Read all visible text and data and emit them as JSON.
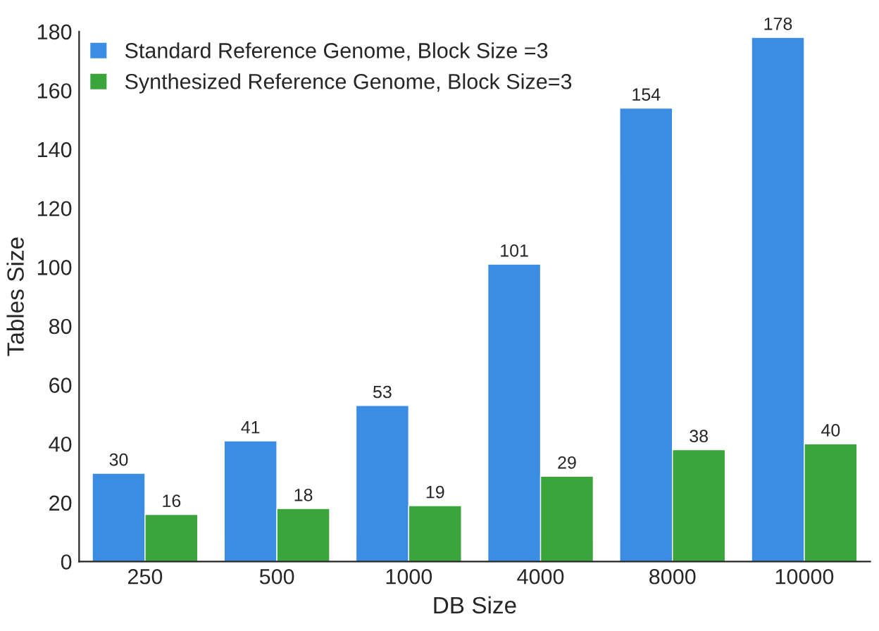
{
  "chart_data": {
    "type": "bar",
    "xlabel": "DB Size",
    "ylabel": "Tables Size",
    "categories": [
      "250",
      "500",
      "1000",
      "4000",
      "8000",
      "10000"
    ],
    "series": [
      {
        "name": "Standard Reference Genome, Block Size =3",
        "color": "#3b8de3",
        "values": [
          30,
          41,
          53,
          101,
          154,
          178
        ]
      },
      {
        "name": "Synthesized Reference Genome, Block Size=3",
        "color": "#3aa53a",
        "values": [
          16,
          18,
          19,
          29,
          38,
          40
        ]
      }
    ],
    "ylim": [
      0,
      180
    ],
    "yticks": [
      0,
      20,
      40,
      60,
      80,
      100,
      120,
      140,
      160,
      180
    ],
    "grid": false,
    "legend": "top left",
    "data_labels": true
  }
}
